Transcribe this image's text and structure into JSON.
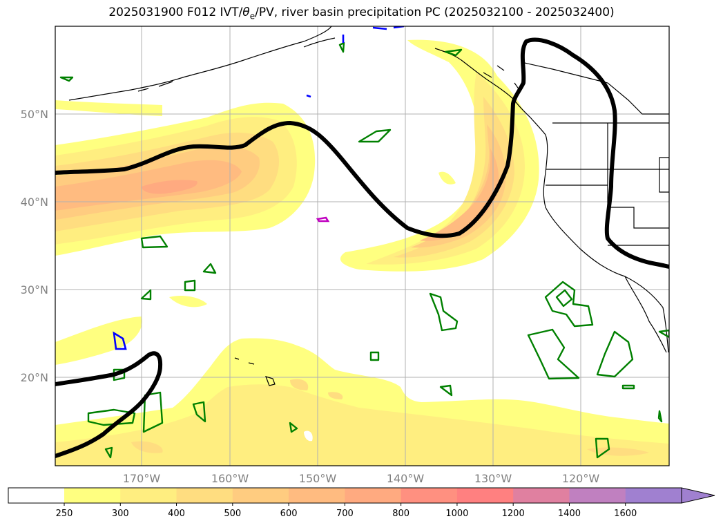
{
  "title": {
    "prefix": "2025031900 F012 IVT/",
    "theta": "θ",
    "sub": "e",
    "suffix": "/PV, river basin precipitation PC (2025032100 - 2025032400)"
  },
  "chart_data": {
    "type": "map",
    "projection": "equirectangular",
    "extent": {
      "lon_min": -180,
      "lon_max": -110,
      "lat_min": 10,
      "lat_max": 60
    },
    "grid": true,
    "lat_ticks": [
      {
        "value": 20,
        "label": "20°N"
      },
      {
        "value": 30,
        "label": "30°N"
      },
      {
        "value": 40,
        "label": "40°N"
      },
      {
        "value": 50,
        "label": "50°N"
      }
    ],
    "lon_ticks": [
      {
        "value": -170,
        "label": "170°W"
      },
      {
        "value": -160,
        "label": "160°W"
      },
      {
        "value": -150,
        "label": "150°W"
      },
      {
        "value": -140,
        "label": "140°W"
      },
      {
        "value": -130,
        "label": "130°W"
      },
      {
        "value": -120,
        "label": "120°W"
      }
    ],
    "colorbar": {
      "labels": [
        "250",
        "300",
        "400",
        "500",
        "600",
        "700",
        "800",
        "1000",
        "1200",
        "1400",
        "1600"
      ],
      "colors": [
        "#ffff80",
        "#ffee80",
        "#ffdd80",
        "#ffcc80",
        "#ffbb80",
        "#ffaa80",
        "#ff9080",
        "#ff8080",
        "#e080a0",
        "#c080c0",
        "#a080d0"
      ],
      "extend": "max"
    },
    "pv_contour_color": "#000000",
    "precip_contour_color": "#008000",
    "theta_contour_colors": [
      "#0000ff",
      "#c000c0"
    ]
  }
}
